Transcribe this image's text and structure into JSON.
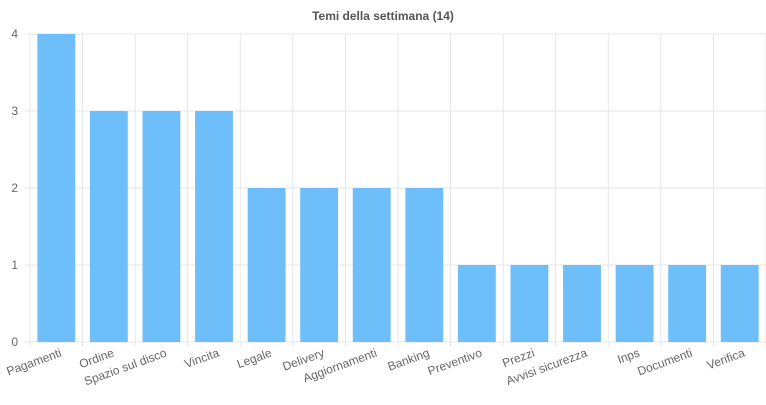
{
  "chart_data": {
    "type": "bar",
    "title": "Temi della settimana (14)",
    "categories": [
      "Pagamenti",
      "Ordine",
      "Spazio sul disco",
      "Vincita",
      "Legale",
      "Delivery",
      "Aggiornamenti",
      "Banking",
      "Preventivo",
      "Prezzi",
      "Avvisi sicurezza",
      "Inps",
      "Documenti",
      "Verifica"
    ],
    "values": [
      4,
      3,
      3,
      3,
      2,
      2,
      2,
      2,
      1,
      1,
      1,
      1,
      1,
      1
    ],
    "ylim": [
      0,
      4
    ],
    "yticks": [
      0,
      1,
      2,
      3,
      4
    ],
    "grid": true,
    "bar_color": "#6ebef9",
    "grid_color": "#e6e6e6"
  }
}
